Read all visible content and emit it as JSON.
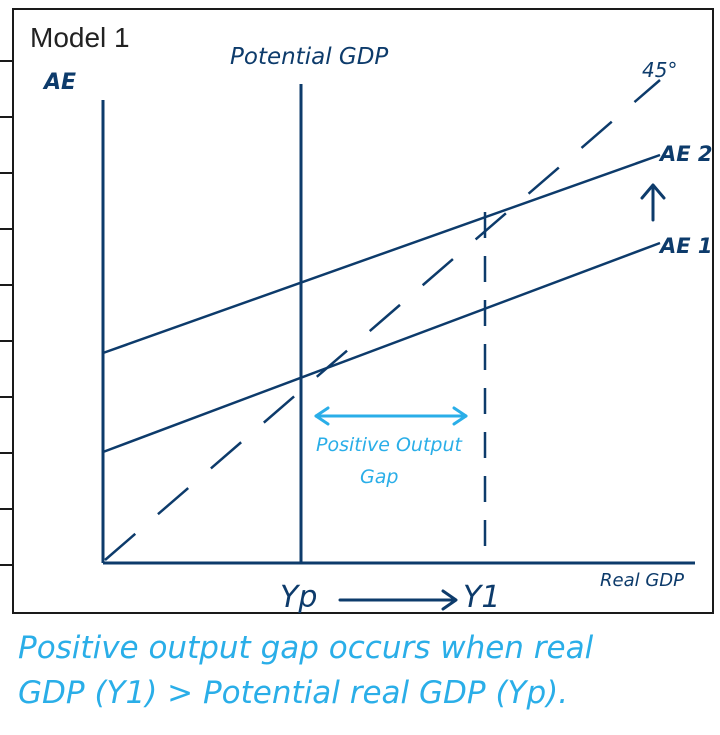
{
  "model_title": "Model 1",
  "labels": {
    "y_axis": "AE",
    "potential_gdp": "Potential GDP",
    "deg45": "45°",
    "ae2": "AE 2",
    "ae1": "AE 1",
    "x_axis": "Real GDP",
    "yp": "Yp",
    "y1": "Y1",
    "gap_line1": "Positive Output",
    "gap_line2": "Gap"
  },
  "note": {
    "line1": "Positive output gap occurs when real",
    "line2": "GDP (Y1) > Potential real GDP (Yp)."
  },
  "colors": {
    "ink": "#0d3b6b",
    "highlight": "#2aaee8",
    "frame": "#1a1a1a"
  }
}
